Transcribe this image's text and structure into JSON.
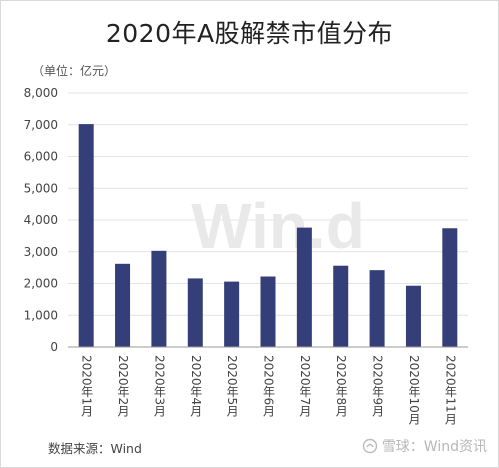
{
  "title": "2020年A股解禁市值分布",
  "unit_label": "（单位：亿元）",
  "source": "数据来源：Wind",
  "watermark_center": "Win.d",
  "watermark_bottom": "雪球：Wind资讯",
  "colors": {
    "bar": "#343e78",
    "grid": "#e4e4e4",
    "axis": "#444444",
    "watermark": "#e9e9e9"
  },
  "chart_data": {
    "type": "bar",
    "title": "2020年A股解禁市值分布",
    "ylabel": "（单位：亿元）",
    "xlabel": "",
    "ylim": [
      0,
      8000
    ],
    "yticks": [
      "0",
      "1,000",
      "2,000",
      "3,000",
      "4,000",
      "5,000",
      "6,000",
      "7,000",
      "8,000"
    ],
    "grid": true,
    "categories": [
      "2020年1月",
      "2020年2月",
      "2020年3月",
      "2020年4月",
      "2020年5月",
      "2020年6月",
      "2020年7月",
      "2020年8月",
      "2020年9月",
      "2020年10月",
      "2020年11月"
    ],
    "values": [
      7020,
      2620,
      3030,
      2160,
      2060,
      2220,
      3760,
      2560,
      2420,
      1930,
      3740
    ]
  }
}
